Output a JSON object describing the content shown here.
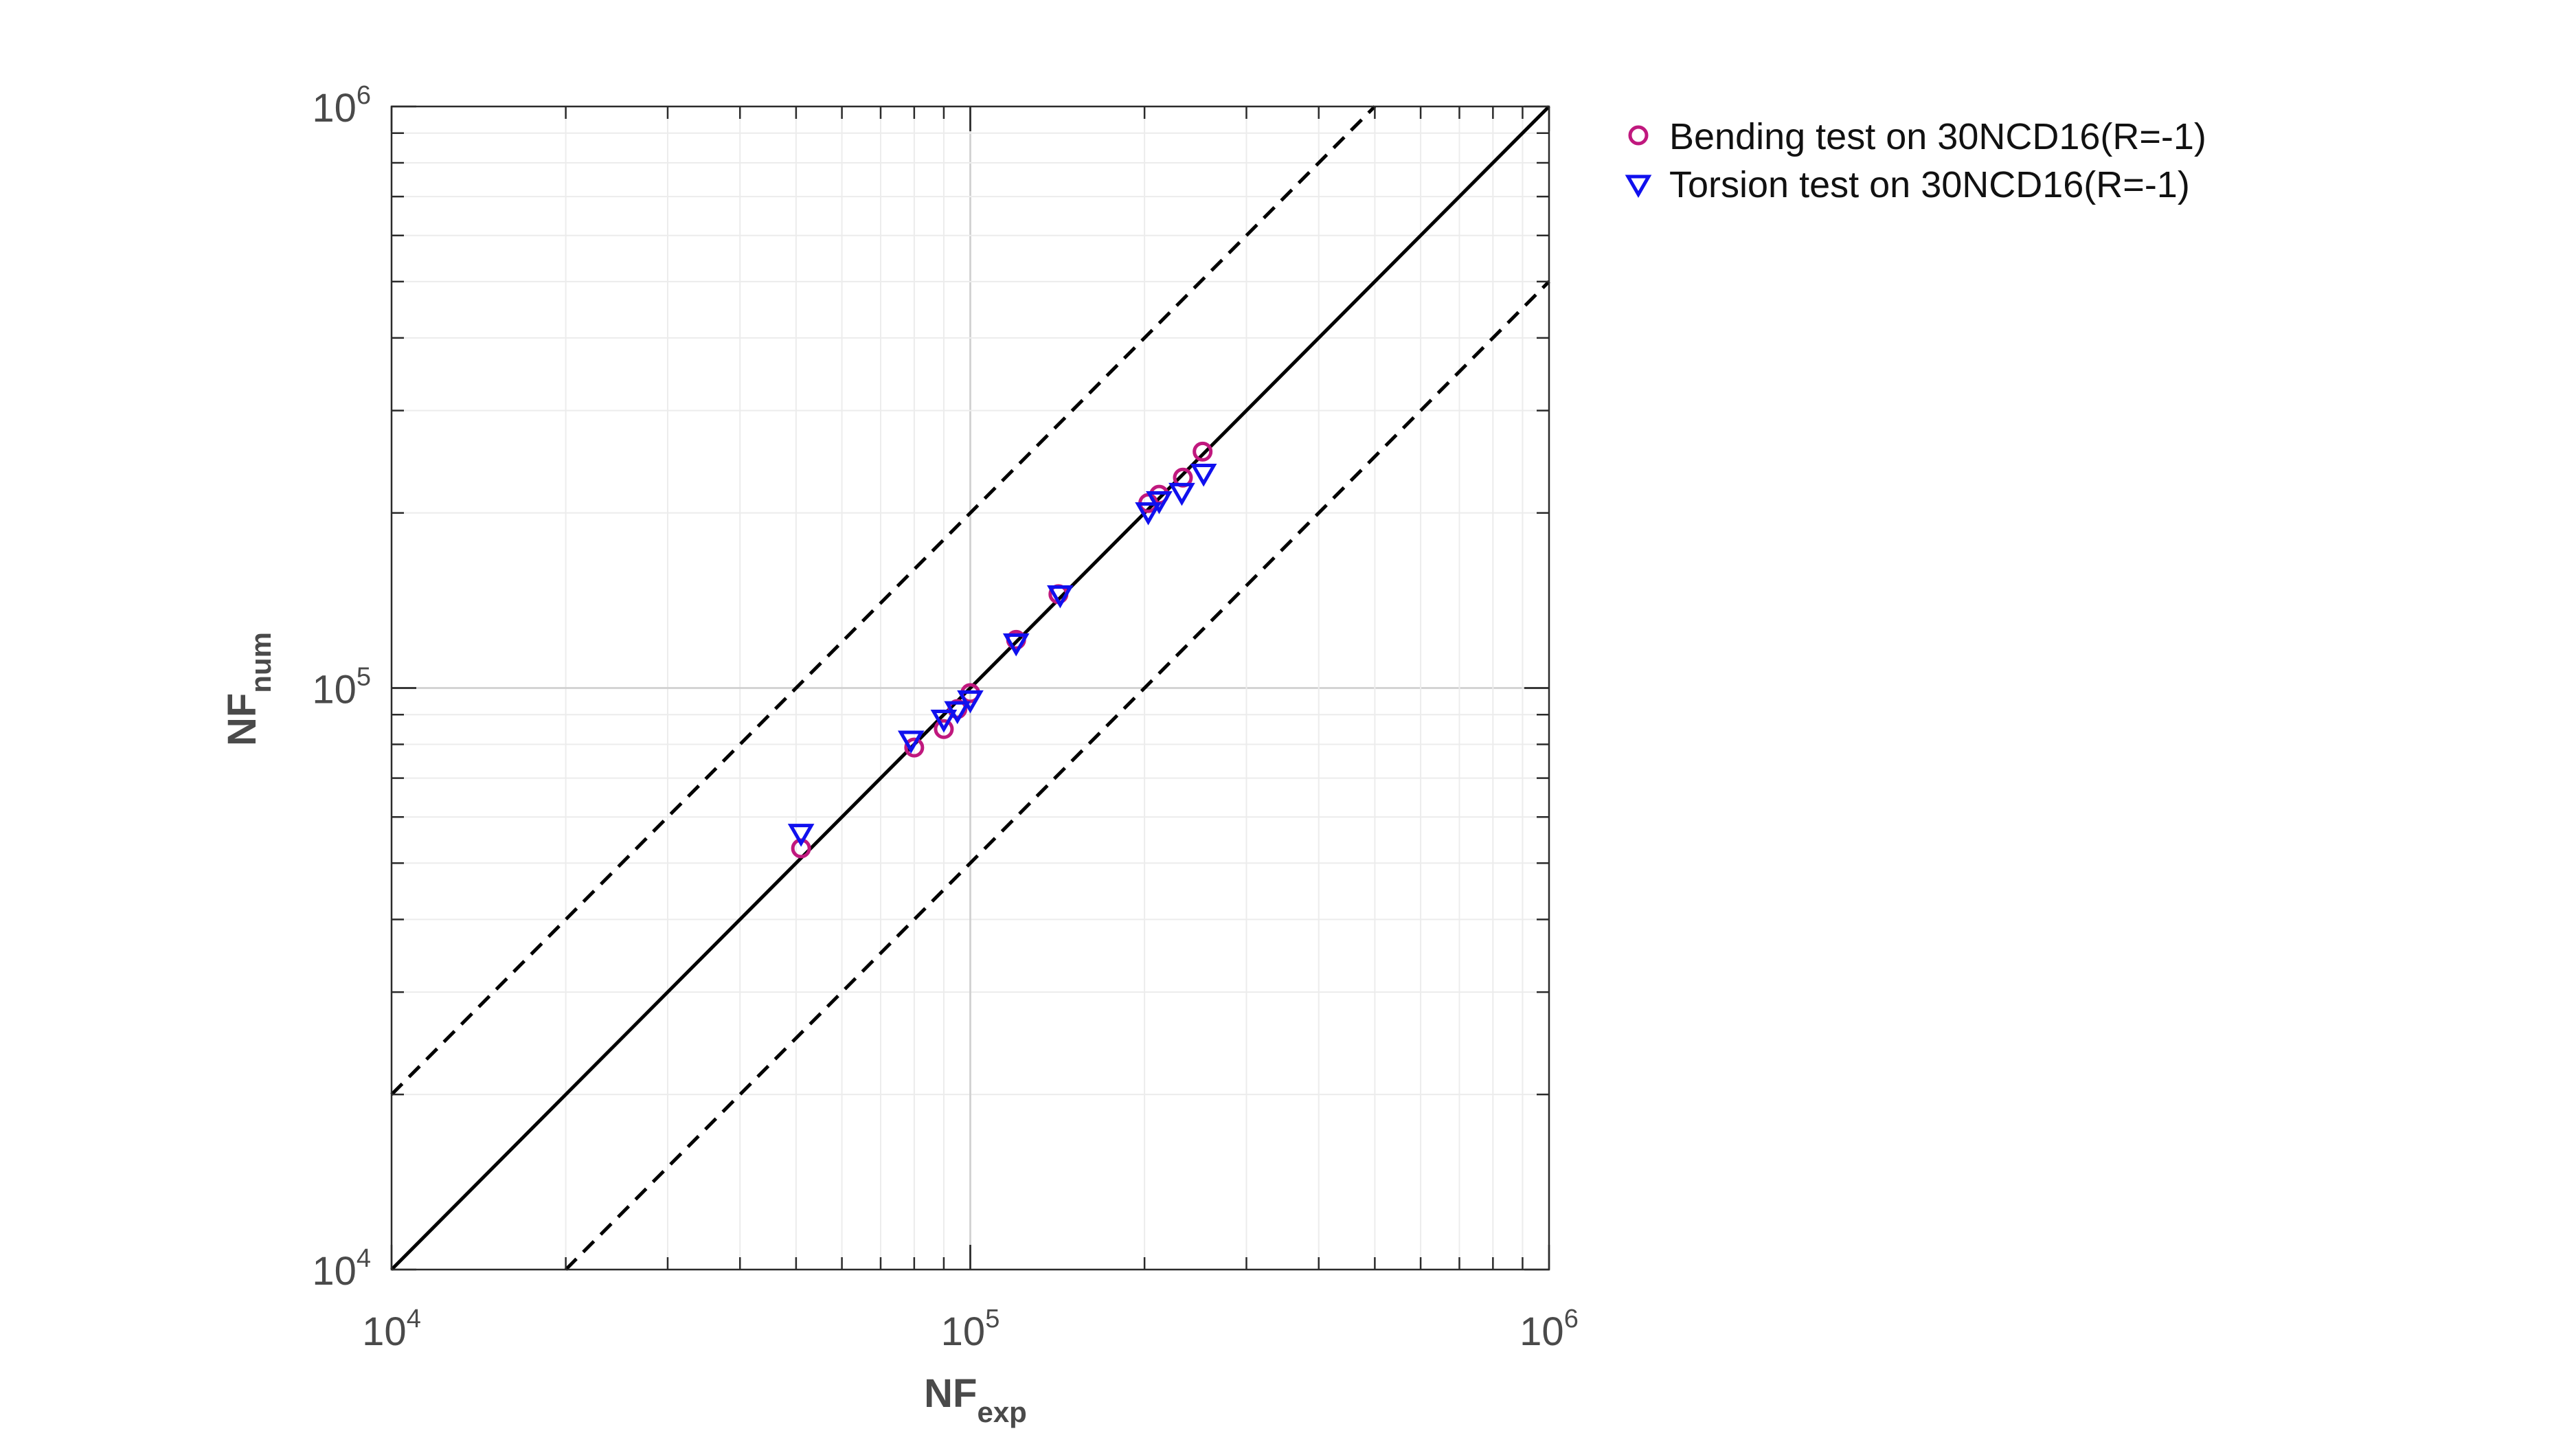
{
  "chart_data": {
    "type": "scatter",
    "title": "",
    "xlabel": {
      "main": "NF",
      "sub": "exp"
    },
    "ylabel": {
      "main": "NF",
      "sub": "num"
    },
    "xscale": "log",
    "yscale": "log",
    "xlim": [
      10000,
      1000000
    ],
    "ylim": [
      10000,
      1000000
    ],
    "grid": true,
    "legend_position": "outside-top-right",
    "x_ticks": [
      {
        "base": "10",
        "exp": "4"
      },
      {
        "base": "10",
        "exp": "5"
      },
      {
        "base": "10",
        "exp": "6"
      }
    ],
    "y_ticks": [
      {
        "base": "10",
        "exp": "4"
      },
      {
        "base": "10",
        "exp": "5"
      },
      {
        "base": "10",
        "exp": "6"
      }
    ],
    "reference_lines": [
      {
        "style": "solid",
        "color": "#000000",
        "factor": 1
      },
      {
        "style": "dashed",
        "color": "#000000",
        "factor": 2
      },
      {
        "style": "dashed",
        "color": "#000000",
        "factor": 0.5
      }
    ],
    "series": [
      {
        "name": "Bending test on 30NCD16(R=-1)",
        "marker": "circle",
        "color": "#c0187e",
        "x": [
          51000,
          80000,
          90000,
          95000,
          100000,
          120000,
          142000,
          203000,
          212000,
          233000,
          252000
        ],
        "y": [
          53000,
          79000,
          85000,
          92000,
          98000,
          121000,
          145000,
          208000,
          215000,
          230000,
          255000
        ]
      },
      {
        "name": "Torsion test on 30NCD16(R=-1)",
        "marker": "triangle-down",
        "color": "#1010ee",
        "x": [
          51000,
          79000,
          90000,
          95000,
          100000,
          120000,
          143000,
          203000,
          212000,
          232000,
          253000
        ],
        "y": [
          56000,
          81000,
          88000,
          91000,
          95000,
          119000,
          144000,
          200000,
          209000,
          216000,
          233000
        ]
      }
    ]
  }
}
